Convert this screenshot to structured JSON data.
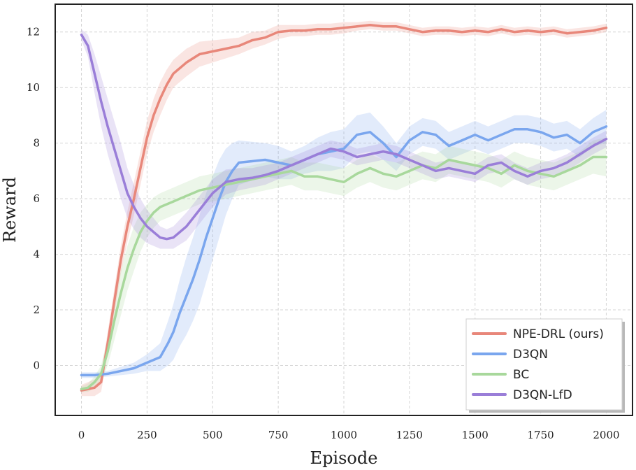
{
  "chart_data": {
    "type": "line",
    "title": "",
    "xlabel": "Episode",
    "ylabel": "Reward",
    "xlim": [
      -100,
      2100
    ],
    "ylim": [
      -1.8,
      13.0
    ],
    "xticks": [
      0,
      250,
      500,
      750,
      1000,
      1250,
      1500,
      1750,
      2000
    ],
    "yticks": [
      0,
      2,
      4,
      6,
      8,
      10,
      12
    ],
    "grid": true,
    "legend_position": "lower right",
    "series": [
      {
        "name": "NPE-DRL (ours)",
        "color": "#e8877a",
        "points": [
          [
            0,
            -0.9
          ],
          [
            25,
            -0.85
          ],
          [
            50,
            -0.8
          ],
          [
            75,
            -0.6
          ],
          [
            100,
            0.8
          ],
          [
            125,
            2.3
          ],
          [
            150,
            3.8
          ],
          [
            175,
            5.0
          ],
          [
            200,
            6.0
          ],
          [
            225,
            7.1
          ],
          [
            250,
            8.2
          ],
          [
            275,
            9.0
          ],
          [
            300,
            9.6
          ],
          [
            325,
            10.1
          ],
          [
            350,
            10.5
          ],
          [
            375,
            10.7
          ],
          [
            400,
            10.9
          ],
          [
            450,
            11.2
          ],
          [
            500,
            11.3
          ],
          [
            550,
            11.4
          ],
          [
            600,
            11.5
          ],
          [
            650,
            11.7
          ],
          [
            700,
            11.8
          ],
          [
            750,
            12.0
          ],
          [
            800,
            12.05
          ],
          [
            850,
            12.05
          ],
          [
            900,
            12.1
          ],
          [
            950,
            12.1
          ],
          [
            1000,
            12.15
          ],
          [
            1050,
            12.2
          ],
          [
            1100,
            12.25
          ],
          [
            1150,
            12.2
          ],
          [
            1200,
            12.2
          ],
          [
            1250,
            12.1
          ],
          [
            1300,
            12.0
          ],
          [
            1350,
            12.05
          ],
          [
            1400,
            12.05
          ],
          [
            1450,
            12.0
          ],
          [
            1500,
            12.05
          ],
          [
            1550,
            12.0
          ],
          [
            1600,
            12.1
          ],
          [
            1650,
            12.0
          ],
          [
            1700,
            12.05
          ],
          [
            1750,
            12.0
          ],
          [
            1800,
            12.05
          ],
          [
            1850,
            11.95
          ],
          [
            1900,
            12.0
          ],
          [
            1950,
            12.05
          ],
          [
            2000,
            12.15
          ]
        ],
        "band": [
          0.2,
          0.25,
          0.3,
          0.35,
          0.4,
          0.45,
          0.5,
          0.55,
          0.6,
          0.6,
          0.6,
          0.6,
          0.6,
          0.55,
          0.5,
          0.5,
          0.5,
          0.45,
          0.4,
          0.35,
          0.3,
          0.3,
          0.25,
          0.25,
          0.2,
          0.2,
          0.2,
          0.2,
          0.2,
          0.15,
          0.15,
          0.15,
          0.15,
          0.15,
          0.15,
          0.15,
          0.15,
          0.15,
          0.15,
          0.15,
          0.15,
          0.15,
          0.15,
          0.15,
          0.15,
          0.15,
          0.15,
          0.15,
          0.15
        ]
      },
      {
        "name": "D3QN",
        "color": "#7aa6ee",
        "points": [
          [
            0,
            -0.35
          ],
          [
            50,
            -0.35
          ],
          [
            100,
            -0.3
          ],
          [
            150,
            -0.2
          ],
          [
            200,
            -0.1
          ],
          [
            250,
            0.1
          ],
          [
            300,
            0.3
          ],
          [
            330,
            0.8
          ],
          [
            350,
            1.2
          ],
          [
            375,
            1.9
          ],
          [
            400,
            2.5
          ],
          [
            425,
            3.1
          ],
          [
            450,
            3.8
          ],
          [
            475,
            4.6
          ],
          [
            500,
            5.3
          ],
          [
            525,
            6.0
          ],
          [
            550,
            6.6
          ],
          [
            575,
            7.0
          ],
          [
            600,
            7.3
          ],
          [
            650,
            7.35
          ],
          [
            700,
            7.4
          ],
          [
            750,
            7.3
          ],
          [
            800,
            7.2
          ],
          [
            850,
            7.4
          ],
          [
            900,
            7.6
          ],
          [
            950,
            7.7
          ],
          [
            1000,
            7.8
          ],
          [
            1050,
            8.3
          ],
          [
            1100,
            8.4
          ],
          [
            1150,
            8.0
          ],
          [
            1200,
            7.5
          ],
          [
            1250,
            8.1
          ],
          [
            1300,
            8.4
          ],
          [
            1350,
            8.3
          ],
          [
            1400,
            7.9
          ],
          [
            1450,
            8.1
          ],
          [
            1500,
            8.3
          ],
          [
            1550,
            8.1
          ],
          [
            1600,
            8.3
          ],
          [
            1650,
            8.5
          ],
          [
            1700,
            8.5
          ],
          [
            1750,
            8.4
          ],
          [
            1800,
            8.2
          ],
          [
            1850,
            8.3
          ],
          [
            1900,
            8.0
          ],
          [
            1950,
            8.4
          ],
          [
            2000,
            8.6
          ]
        ],
        "band": [
          0.1,
          0.1,
          0.1,
          0.15,
          0.2,
          0.3,
          0.5,
          0.8,
          1.0,
          1.2,
          1.4,
          1.5,
          1.6,
          1.6,
          1.5,
          1.4,
          1.2,
          1.0,
          0.8,
          0.7,
          0.6,
          0.6,
          0.5,
          0.5,
          0.6,
          0.7,
          0.7,
          0.7,
          0.7,
          0.6,
          0.5,
          0.5,
          0.5,
          0.5,
          0.5,
          0.5,
          0.5,
          0.5,
          0.5,
          0.5,
          0.5,
          0.5,
          0.5,
          0.5,
          0.5,
          0.5,
          0.6
        ]
      },
      {
        "name": "BC",
        "color": "#a8d89c",
        "points": [
          [
            0,
            -0.85
          ],
          [
            25,
            -0.8
          ],
          [
            50,
            -0.6
          ],
          [
            75,
            -0.3
          ],
          [
            100,
            0.5
          ],
          [
            125,
            1.6
          ],
          [
            150,
            2.6
          ],
          [
            175,
            3.5
          ],
          [
            200,
            4.2
          ],
          [
            225,
            4.8
          ],
          [
            250,
            5.2
          ],
          [
            275,
            5.5
          ],
          [
            300,
            5.7
          ],
          [
            350,
            5.9
          ],
          [
            400,
            6.1
          ],
          [
            450,
            6.3
          ],
          [
            500,
            6.4
          ],
          [
            550,
            6.5
          ],
          [
            600,
            6.6
          ],
          [
            650,
            6.7
          ],
          [
            700,
            6.8
          ],
          [
            750,
            6.9
          ],
          [
            800,
            7.0
          ],
          [
            850,
            6.8
          ],
          [
            900,
            6.8
          ],
          [
            950,
            6.7
          ],
          [
            1000,
            6.6
          ],
          [
            1050,
            6.9
          ],
          [
            1100,
            7.1
          ],
          [
            1150,
            6.9
          ],
          [
            1200,
            6.8
          ],
          [
            1250,
            7.0
          ],
          [
            1300,
            7.2
          ],
          [
            1350,
            7.1
          ],
          [
            1400,
            7.4
          ],
          [
            1450,
            7.3
          ],
          [
            1500,
            7.2
          ],
          [
            1550,
            7.1
          ],
          [
            1600,
            6.9
          ],
          [
            1650,
            7.2
          ],
          [
            1700,
            7.0
          ],
          [
            1750,
            6.9
          ],
          [
            1800,
            6.8
          ],
          [
            1850,
            7.0
          ],
          [
            1900,
            7.2
          ],
          [
            1950,
            7.5
          ],
          [
            2000,
            7.5
          ]
        ],
        "band": [
          0.1,
          0.15,
          0.2,
          0.3,
          0.5,
          0.7,
          0.8,
          0.8,
          0.8,
          0.7,
          0.6,
          0.55,
          0.5,
          0.5,
          0.5,
          0.5,
          0.5,
          0.5,
          0.5,
          0.5,
          0.5,
          0.5,
          0.5,
          0.5,
          0.5,
          0.5,
          0.5,
          0.5,
          0.5,
          0.5,
          0.5,
          0.5,
          0.5,
          0.5,
          0.5,
          0.5,
          0.5,
          0.5,
          0.5,
          0.5,
          0.5,
          0.5,
          0.5,
          0.5,
          0.5,
          0.6,
          0.7
        ]
      },
      {
        "name": "D3QN-LfD",
        "color": "#9a7ed8",
        "points": [
          [
            0,
            11.9
          ],
          [
            25,
            11.5
          ],
          [
            50,
            10.5
          ],
          [
            75,
            9.5
          ],
          [
            100,
            8.6
          ],
          [
            125,
            7.8
          ],
          [
            150,
            7.0
          ],
          [
            175,
            6.2
          ],
          [
            200,
            5.7
          ],
          [
            225,
            5.3
          ],
          [
            250,
            5.0
          ],
          [
            275,
            4.8
          ],
          [
            300,
            4.6
          ],
          [
            325,
            4.55
          ],
          [
            350,
            4.6
          ],
          [
            375,
            4.8
          ],
          [
            400,
            5.0
          ],
          [
            425,
            5.3
          ],
          [
            450,
            5.6
          ],
          [
            475,
            5.9
          ],
          [
            500,
            6.2
          ],
          [
            550,
            6.6
          ],
          [
            600,
            6.7
          ],
          [
            650,
            6.75
          ],
          [
            700,
            6.85
          ],
          [
            750,
            7.0
          ],
          [
            800,
            7.2
          ],
          [
            850,
            7.4
          ],
          [
            900,
            7.6
          ],
          [
            950,
            7.8
          ],
          [
            1000,
            7.7
          ],
          [
            1050,
            7.5
          ],
          [
            1100,
            7.6
          ],
          [
            1150,
            7.7
          ],
          [
            1200,
            7.6
          ],
          [
            1250,
            7.4
          ],
          [
            1300,
            7.2
          ],
          [
            1350,
            7.0
          ],
          [
            1400,
            7.1
          ],
          [
            1450,
            7.0
          ],
          [
            1500,
            6.9
          ],
          [
            1550,
            7.2
          ],
          [
            1600,
            7.3
          ],
          [
            1650,
            7.0
          ],
          [
            1700,
            6.8
          ],
          [
            1750,
            7.0
          ],
          [
            1800,
            7.1
          ],
          [
            1850,
            7.3
          ],
          [
            1900,
            7.6
          ],
          [
            1950,
            7.9
          ],
          [
            2000,
            8.15
          ]
        ],
        "band": [
          0.2,
          0.4,
          0.7,
          0.9,
          1.0,
          1.0,
          1.0,
          0.9,
          0.8,
          0.7,
          0.6,
          0.5,
          0.4,
          0.35,
          0.4,
          0.45,
          0.5,
          0.5,
          0.5,
          0.5,
          0.5,
          0.45,
          0.4,
          0.35,
          0.35,
          0.3,
          0.3,
          0.3,
          0.3,
          0.3,
          0.3,
          0.3,
          0.3,
          0.3,
          0.3,
          0.3,
          0.3,
          0.3,
          0.3,
          0.3,
          0.3,
          0.3,
          0.3,
          0.3,
          0.3,
          0.3,
          0.3,
          0.3,
          0.3,
          0.3,
          0.3
        ]
      }
    ]
  }
}
